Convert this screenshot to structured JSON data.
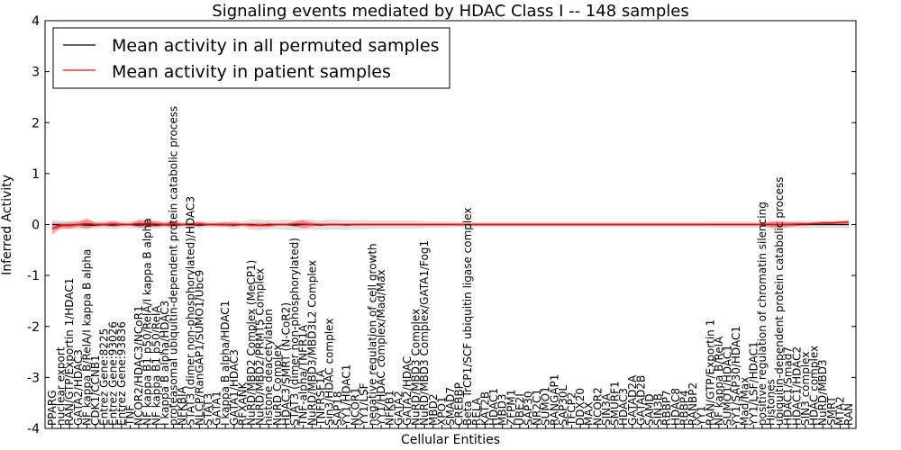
{
  "chart_data": {
    "type": "line",
    "title": "Signaling events mediated by HDAC Class I -- 148 samples",
    "xlabel": "Cellular Entities",
    "ylabel": "Inferred Activity",
    "ylim": [
      -4,
      4
    ],
    "yticks": [
      "-4",
      "-3",
      "-2",
      "-1",
      "0",
      "1",
      "2",
      "3",
      "4"
    ],
    "grid": false,
    "legend": {
      "placement": "top-left",
      "entries": [
        {
          "name": "Mean activity in all permuted samples",
          "color": "#000000"
        },
        {
          "name": "Mean activity in patient samples",
          "color": "#ff0000"
        }
      ]
    },
    "categories": [
      "PPARG",
      "nuclear export",
      "RAN/GTP/Exportin 1/HDAC1",
      "GATA2/HDAC3",
      "NF kappa B/RelA/I kappa B alpha",
      "CDK1/CCNB1",
      "Entrez Gene:8225",
      "Entrez Gene:93026",
      "Entrez Gene:93836",
      "TNF",
      "NCOR2/HDAC3/NCoR1",
      "NF kappa B1 p50/RelA/I kappa B alpha",
      "NF kappa B1 p50/RelA",
      "I kappa B alpha/HDAC3",
      "proteasomal ubiquitin-dependent protein catabolic process",
      "NFKBIA",
      "STAT3 (dimer non-phosphorylated)/HDAC3",
      "NLCP/RanGAP1/SUMO1/Ubc9",
      "STAT3",
      "GATA1",
      "I kappa B alpha/HDAC1",
      "GATA1/HDAC3",
      "RFXANK",
      "NuRD/MBD2 Complex (MeCP1)",
      "NuRD/MBD2/PRMT5 Complex",
      "histone deacetylation",
      "NuRD Complex",
      "HDAC3/SMRT (N-CoR2)",
      "STAT3 (dimer non-phosphorylated)",
      "TNF-alpha/TNFR1A",
      "NuRD/MBD3/MBD3L2 Complex",
      "TNFRSF1A",
      "Sin3/HDAC complex",
      "SAP18",
      "YY1/HDAC1",
      "NCOR1",
      "YY1/LSF",
      "negative regulation of cell growth",
      "YY1/HDAC complex/Mad/Max",
      "NFKB1",
      "GATA2",
      "GATA2/HDAC",
      "NuRD/MBD3 Complex",
      "NuRD/MBD3 Complex/GATA1/Fog1",
      "MBD2",
      "XPO1",
      "SMAD7",
      "CREBBP",
      "Beta TrCP1/SCF ubiquitin ligase complex",
      "RELA",
      "KAT2B",
      "HDAC1",
      "MBD3",
      "ZFPM1",
      "UBE2I",
      "SAP30",
      "NR2C1",
      "SUMO1",
      "RANGAP1",
      "SAP30L",
      "TFCP2",
      "DDX20",
      "MAX",
      "NCOR2",
      "SIN3A",
      "SMURF1",
      "HDAC3",
      "GATAD2A",
      "GATAD2B",
      "SAMD",
      "SIN3B",
      "RBBP7",
      "HDAC8",
      "RBBP4",
      "RANBP2",
      "YY1",
      "RAN/GTP/Exportin 1",
      "NF kappa B/RelA",
      "SUMO1/HDAC1",
      "YY1/SAP30/HDAC1",
      "Mad/Max",
      "YY1/LSF/HDAC1",
      "positive regulation of chromatin silencing",
      "Histones",
      "ubiquitin-dependent protein catabolic process",
      "HDAC1/Smad7",
      "HDAC1/HDAC2",
      "SIN3 complex",
      "HDAC complex",
      "NuRD/MBD3",
      "SMRT",
      "MTA2",
      "RAN"
    ],
    "label_levels": [
      1,
      2,
      3,
      3,
      4,
      1,
      2,
      2,
      3,
      1,
      2,
      4,
      3,
      2,
      8,
      1,
      6,
      3,
      1,
      2,
      2,
      3,
      1,
      3,
      3,
      2,
      2,
      2,
      3,
      2,
      2,
      1,
      2,
      1,
      2,
      1,
      1,
      3,
      2,
      1,
      1,
      1,
      2,
      2,
      1,
      1,
      1,
      1,
      6,
      1,
      1,
      1,
      1,
      1,
      1,
      1,
      1,
      1,
      1,
      1,
      1,
      1,
      1,
      1,
      1,
      1,
      1,
      1,
      1,
      1,
      1,
      1,
      1,
      1,
      1,
      1,
      2,
      2,
      1,
      2,
      1,
      1,
      5,
      2,
      6,
      2,
      2,
      1,
      1,
      1,
      1,
      1,
      1
    ],
    "series": [
      {
        "name": "Mean activity in all permuted samples",
        "color": "#000000",
        "values": [
          0.0,
          -0.01,
          -0.01,
          0.0,
          -0.01,
          -0.01,
          0.0,
          -0.01,
          0.0,
          0.0,
          -0.01,
          0.0,
          -0.01,
          0.0,
          -0.01,
          0.0,
          0.0,
          -0.01,
          0.0,
          0.0,
          0.0,
          -0.01,
          0.0,
          0.0,
          -0.01,
          0.0,
          0.0,
          0.0,
          -0.01,
          0.0,
          0.0,
          -0.01,
          0.0,
          0.0,
          -0.01,
          0.0,
          0.0,
          0.0,
          0.0,
          0.0,
          0.0,
          0.0,
          0.0,
          0.0,
          0.0,
          0.0,
          0.0,
          0.0,
          0.0,
          0.0,
          0.0,
          0.0,
          0.0,
          0.0,
          0.0,
          0.0,
          0.0,
          0.0,
          0.0,
          0.0,
          0.0,
          0.0,
          0.0,
          0.0,
          0.0,
          0.0,
          0.0,
          0.0,
          0.0,
          0.0,
          0.0,
          0.0,
          0.0,
          0.0,
          0.0,
          0.0,
          0.0,
          0.0,
          0.0,
          0.0,
          0.0,
          0.0,
          0.0,
          0.0,
          0.0,
          0.0,
          0.0,
          0.0,
          0.0,
          0.0,
          0.0,
          0.0,
          0.0
        ],
        "band": [
          0.1,
          0.08,
          0.08,
          0.09,
          0.08,
          0.07,
          0.07,
          0.08,
          0.07,
          0.07,
          0.07,
          0.07,
          0.07,
          0.06,
          0.08,
          0.06,
          0.06,
          0.07,
          0.06,
          0.06,
          0.06,
          0.08,
          0.06,
          0.1,
          0.1,
          0.09,
          0.09,
          0.1,
          0.1,
          0.1,
          0.1,
          0.09,
          0.1,
          0.09,
          0.1,
          0.09,
          0.09,
          0.08,
          0.08,
          0.08,
          0.08,
          0.08,
          0.08,
          0.07,
          0.06,
          0.06,
          0.06,
          0.05,
          0.05,
          0.05,
          0.05,
          0.05,
          0.05,
          0.05,
          0.05,
          0.05,
          0.05,
          0.05,
          0.05,
          0.05,
          0.05,
          0.05,
          0.05,
          0.05,
          0.05,
          0.05,
          0.05,
          0.05,
          0.05,
          0.05,
          0.05,
          0.05,
          0.05,
          0.05,
          0.05,
          0.05,
          0.06,
          0.06,
          0.06,
          0.06,
          0.06,
          0.06,
          0.06,
          0.06,
          0.06,
          0.06,
          0.07,
          0.07,
          0.07,
          0.07,
          0.07,
          0.07,
          0.07
        ]
      },
      {
        "name": "Mean activity in patient samples",
        "color": "#ff0000",
        "values": [
          -0.08,
          -0.02,
          -0.02,
          0.0,
          0.02,
          0.0,
          0.0,
          0.01,
          0.0,
          0.0,
          0.02,
          0.01,
          0.01,
          0.0,
          0.01,
          0.0,
          0.0,
          0.01,
          0.0,
          0.0,
          0.0,
          0.0,
          0.0,
          -0.01,
          -0.01,
          -0.01,
          0.0,
          0.0,
          0.01,
          0.01,
          0.0,
          0.0,
          0.0,
          0.0,
          0.0,
          0.0,
          0.0,
          0.0,
          0.0,
          0.0,
          0.0,
          0.0,
          0.0,
          0.0,
          0.0,
          0.0,
          0.0,
          0.0,
          0.0,
          0.0,
          0.0,
          0.0,
          0.0,
          0.0,
          0.0,
          0.0,
          0.0,
          0.0,
          0.0,
          0.0,
          0.0,
          0.0,
          0.0,
          0.0,
          0.0,
          0.0,
          0.0,
          0.0,
          0.0,
          0.0,
          0.0,
          0.0,
          0.0,
          0.0,
          0.0,
          0.0,
          0.0,
          0.0,
          0.0,
          0.0,
          0.0,
          0.0,
          0.0,
          0.0,
          0.0,
          0.0,
          0.01,
          0.01,
          0.02,
          0.03,
          0.03,
          0.04,
          0.05
        ],
        "band": [
          0.12,
          0.05,
          0.06,
          0.05,
          0.1,
          0.04,
          0.03,
          0.06,
          0.03,
          0.02,
          0.08,
          0.07,
          0.06,
          0.03,
          0.06,
          0.02,
          0.03,
          0.05,
          0.02,
          0.03,
          0.04,
          0.04,
          0.02,
          0.04,
          0.04,
          0.04,
          0.02,
          0.02,
          0.05,
          0.08,
          0.04,
          0.02,
          0.02,
          0.02,
          0.02,
          0.02,
          0.02,
          0.02,
          0.02,
          0.02,
          0.02,
          0.02,
          0.02,
          0.02,
          0.02,
          0.02,
          0.02,
          0.02,
          0.02,
          0.02,
          0.02,
          0.02,
          0.02,
          0.02,
          0.02,
          0.02,
          0.02,
          0.02,
          0.02,
          0.02,
          0.02,
          0.02,
          0.02,
          0.02,
          0.02,
          0.02,
          0.02,
          0.02,
          0.02,
          0.02,
          0.02,
          0.02,
          0.02,
          0.02,
          0.02,
          0.02,
          0.02,
          0.02,
          0.02,
          0.02,
          0.02,
          0.02,
          0.02,
          0.06,
          0.07,
          0.05,
          0.04,
          0.03,
          0.03,
          0.03,
          0.03,
          0.03,
          0.03
        ]
      }
    ]
  }
}
